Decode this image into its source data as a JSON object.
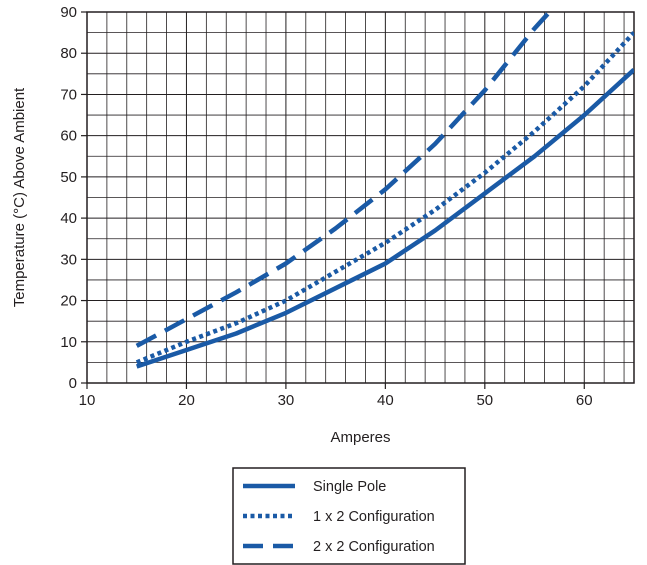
{
  "chart_data": {
    "type": "line",
    "title": "",
    "xlabel": "Amperes",
    "ylabel": "Temperature (°C) Above Ambient",
    "xlim": [
      10,
      65
    ],
    "ylim": [
      0,
      90
    ],
    "x_ticks": [
      10,
      20,
      30,
      40,
      50,
      60
    ],
    "y_ticks": [
      0,
      10,
      20,
      30,
      40,
      50,
      60,
      70,
      80,
      90
    ],
    "grid": true,
    "legend_position": "bottom-center",
    "line_color": "#1a5aa6",
    "series": [
      {
        "name": "Single Pole",
        "style": "solid",
        "x": [
          15,
          20,
          22.5,
          25,
          30,
          35,
          40,
          45,
          50,
          55,
          60,
          65
        ],
        "y": [
          4,
          8,
          10,
          12,
          17,
          23,
          29,
          37,
          46,
          55,
          65,
          76
        ]
      },
      {
        "name": "1 x 2 Configuration",
        "style": "dotted",
        "x": [
          15,
          20,
          25,
          30,
          35,
          40,
          45,
          50,
          55,
          60,
          65
        ],
        "y": [
          5,
          10,
          14.5,
          20,
          27,
          34,
          42,
          51,
          61,
          72,
          85
        ]
      },
      {
        "name": "2 x 2 Configuration",
        "style": "dashed",
        "x": [
          15,
          20,
          25,
          30,
          35,
          40,
          45,
          50,
          55,
          56.5
        ],
        "y": [
          9,
          15.5,
          22,
          29,
          37.5,
          47,
          58,
          71,
          86,
          90
        ]
      }
    ]
  }
}
